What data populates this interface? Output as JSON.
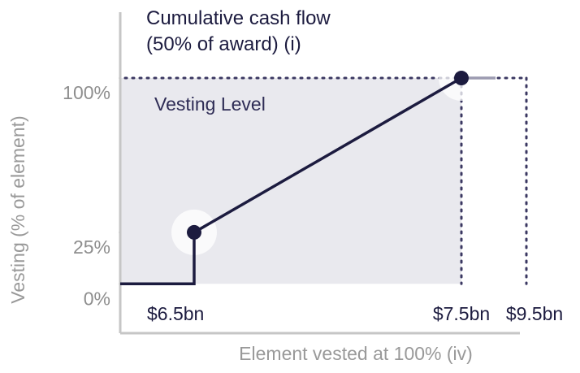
{
  "chart_data": {
    "type": "step-line",
    "title": "Cumulative cash flow (50% of award) (i)",
    "annotation": "Vesting Level",
    "y_label": "Vesting (% of element)",
    "x_label": "Element vested at 100% (iv)",
    "categories": [
      "$6.5bn",
      "$7.5bn",
      "$9.5bn"
    ],
    "values": [
      25,
      100,
      100
    ],
    "color": "#1c1b3f",
    "ylim": [
      -24,
      132
    ],
    "yticks": [
      {
        "value": 0,
        "label": "0%"
      },
      {
        "value": 25,
        "label": "25%"
      },
      {
        "value": 100,
        "label": "100%"
      }
    ]
  }
}
